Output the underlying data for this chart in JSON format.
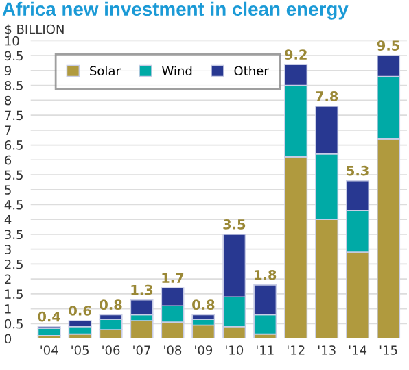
{
  "chart_data": {
    "type": "bar",
    "title": "Africa new investment in clean energy",
    "ylabel": "$ BILLION",
    "stacked": true,
    "categories": [
      "'04",
      "'05",
      "'06",
      "'07",
      "'08",
      "'09",
      "'10",
      "'11",
      "'12",
      "'13",
      "'14",
      "'15"
    ],
    "series": [
      {
        "name": "Solar",
        "color": "#b09a3e",
        "values": [
          0.1,
          0.15,
          0.3,
          0.6,
          0.55,
          0.45,
          0.4,
          0.15,
          6.1,
          4.0,
          2.9,
          6.7
        ]
      },
      {
        "name": "Wind",
        "color": "#00aaa6",
        "values": [
          0.25,
          0.25,
          0.35,
          0.2,
          0.55,
          0.2,
          1.0,
          0.65,
          2.4,
          2.2,
          1.4,
          2.1
        ]
      },
      {
        "name": "Other",
        "color": "#283891",
        "values": [
          0.05,
          0.2,
          0.15,
          0.5,
          0.6,
          0.15,
          2.1,
          1.0,
          0.7,
          1.6,
          1.0,
          0.7
        ]
      }
    ],
    "totals": [
      "0.4",
      "0.6",
      "0.8",
      "1.3",
      "1.7",
      "0.8",
      "3.5",
      "1.8",
      "9.2",
      "7.8",
      "5.3",
      "9.5"
    ],
    "ylim": [
      0,
      10
    ],
    "yticks": [
      0,
      0.5,
      1,
      1.5,
      2,
      2.5,
      3,
      3.5,
      4,
      4.5,
      5,
      5.5,
      6,
      6.5,
      7,
      7.5,
      8,
      8.5,
      9,
      9.5,
      10
    ],
    "grid": "y",
    "legend": "top left"
  }
}
